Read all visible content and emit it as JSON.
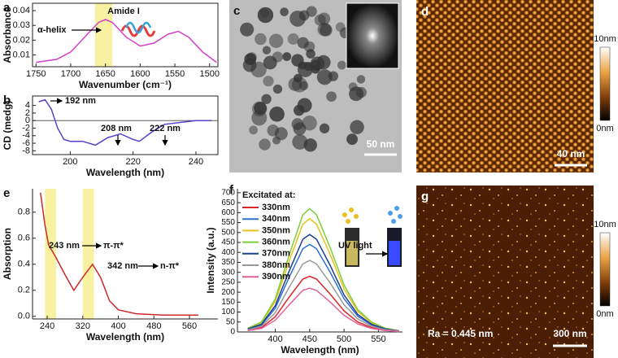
{
  "chart_data": [
    {
      "type": "line",
      "panel": "a",
      "xlabel": "Wavenumber (cm⁻¹)",
      "ylabel": "Absorbance",
      "x": [
        1750,
        1720,
        1700,
        1680,
        1660,
        1650,
        1640,
        1620,
        1600,
        1580,
        1560,
        1545,
        1530,
        1510,
        1490
      ],
      "values": [
        0.005,
        0.007,
        0.012,
        0.022,
        0.032,
        0.034,
        0.032,
        0.022,
        0.016,
        0.018,
        0.024,
        0.026,
        0.022,
        0.012,
        0.005
      ],
      "color": "#d63fc8",
      "xlim": [
        1755,
        1488
      ],
      "ylim": [
        0.002,
        0.045
      ],
      "xticks": [
        1750,
        1700,
        1650,
        1600,
        1550,
        1500
      ],
      "yticks": [
        0.01,
        0.02,
        0.03,
        0.04
      ],
      "highlight": [
        [
          1665,
          1640
        ]
      ],
      "annotations": [
        "Amide I",
        "α-helix"
      ]
    },
    {
      "type": "line",
      "panel": "b",
      "xlabel": "Wavelength (nm)",
      "ylabel": "CD (medg)",
      "x": [
        190,
        192,
        194,
        196,
        198,
        200,
        204,
        208,
        212,
        216,
        220,
        222,
        226,
        230,
        235,
        240,
        245
      ],
      "values": [
        5,
        5.5,
        3,
        -2,
        -5,
        -5.5,
        -5.5,
        -6.5,
        -4.5,
        -3.5,
        -5,
        -5.5,
        -3,
        -1,
        -0.5,
        0,
        0
      ],
      "color": "#5a3fd0",
      "xlim": [
        188,
        247
      ],
      "ylim": [
        -9,
        6.5
      ],
      "xticks": [
        200,
        220,
        240
      ],
      "yticks": [
        -8,
        -6,
        -4,
        -2,
        0,
        2,
        4
      ],
      "zero_line": true,
      "annotations": [
        "192 nm",
        "208 nm",
        "222 nm"
      ]
    },
    {
      "type": "line",
      "panel": "e",
      "xlabel": "Wavelength (nm)",
      "ylabel": "Absorption",
      "x": [
        225,
        235,
        243,
        260,
        280,
        300,
        320,
        342,
        360,
        380,
        400,
        440,
        500,
        580
      ],
      "values": [
        0.95,
        0.7,
        0.55,
        0.45,
        0.32,
        0.2,
        0.3,
        0.4,
        0.3,
        0.12,
        0.05,
        0.02,
        0.01,
        0.01
      ],
      "color": "#cc2a2a",
      "xlim": [
        207,
        624
      ],
      "ylim": [
        -0.02,
        0.98
      ],
      "xticks": [
        240,
        320,
        400,
        480,
        560
      ],
      "yticks": [
        {
          "value": 0,
          "label": "0.0"
        },
        0.2,
        0.4,
        0.6,
        0.8
      ],
      "highlight": [
        [
          235,
          260
        ],
        [
          320,
          345
        ]
      ],
      "annotations": [
        "243 nm",
        "π-π*",
        "342 nm",
        "n-π*"
      ]
    },
    {
      "type": "line",
      "panel": "f",
      "xlabel": "Wavelength (nm)",
      "ylabel": "Intensity (a.u.)",
      "legend_title": "Excitated at:",
      "legend": "upper-left",
      "x": [
        360,
        380,
        400,
        420,
        440,
        450,
        460,
        480,
        500,
        520,
        540,
        560,
        580
      ],
      "series": [
        {
          "name": "330nm",
          "color": "#d9262b",
          "values": [
            8,
            22,
            76,
            174,
            266,
            280,
            266,
            190,
            106,
            50,
            22,
            8,
            3
          ]
        },
        {
          "name": "340nm",
          "color": "#2f6fd6",
          "values": [
            13,
            35,
            119,
            273,
            418,
            440,
            418,
            299,
            167,
            79,
            35,
            13,
            4
          ]
        },
        {
          "name": "350nm",
          "color": "#e6c21a",
          "values": [
            17,
            46,
            154,
            353,
            542,
            570,
            542,
            388,
            217,
            103,
            46,
            17,
            6
          ]
        },
        {
          "name": "360nm",
          "color": "#7ccf3c",
          "values": [
            19,
            50,
            167,
            384,
            589,
            620,
            589,
            422,
            236,
            112,
            50,
            19,
            6
          ]
        },
        {
          "name": "370nm",
          "color": "#1f3f8f",
          "values": [
            15,
            39,
            132,
            304,
            466,
            490,
            466,
            333,
            186,
            88,
            39,
            15,
            5
          ]
        },
        {
          "name": "380nm",
          "color": "#9a9a9a",
          "values": [
            11,
            29,
            97,
            223,
            342,
            360,
            342,
            245,
            137,
            65,
            29,
            11,
            4
          ]
        },
        {
          "name": "390nm",
          "color": "#e0609a",
          "values": [
            7,
            18,
            59,
            136,
            209,
            220,
            209,
            150,
            84,
            40,
            18,
            7,
            2
          ]
        }
      ],
      "xlim": [
        345,
        585
      ],
      "ylim": [
        0,
        720
      ],
      "xticks": [
        400,
        450,
        500,
        550
      ],
      "yticks": [
        0,
        50,
        100,
        150,
        200,
        250,
        300,
        350,
        400,
        450,
        500,
        550,
        600,
        650,
        700
      ],
      "annotations": [
        "UV light"
      ]
    }
  ],
  "images": [
    {
      "panel": "c",
      "scale_bar": "50 nm"
    },
    {
      "panel": "d",
      "scale_bar": "40 nm",
      "colorbar": [
        "10nm",
        "0nm"
      ]
    },
    {
      "panel": "g",
      "scale_bar": "300 nm",
      "colorbar": [
        "10nm",
        "0nm"
      ],
      "annotation": "Ra = 0.445 nm"
    }
  ]
}
